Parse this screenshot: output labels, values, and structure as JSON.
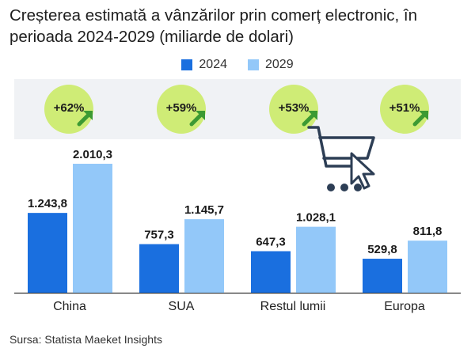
{
  "title": "Creșterea estimată a vânzărilor prin comerț electronic, în perioada 2024-2029 (miliarde de dolari)",
  "legend": [
    {
      "label": "2024",
      "color": "#1a6fdf"
    },
    {
      "label": "2029",
      "color": "#93c8f9"
    }
  ],
  "growth_badges": [
    "+62%",
    "+59%",
    "+53%",
    "+51%"
  ],
  "source": "Sursa: Statista Maeket Insights",
  "colors": {
    "badge": "#cfec76",
    "arrow": "#3c9a33",
    "band": "#f0f2f5",
    "icon": "#2d3e55"
  },
  "icons": [
    "growth-arrow-icon",
    "shopping-cart-icon",
    "mouse-pointer-icon"
  ],
  "chart_data": {
    "type": "bar",
    "categories": [
      "China",
      "SUA",
      "Restul lumii",
      "Europa"
    ],
    "series": [
      {
        "name": "2024",
        "values": [
          1243.8,
          757.3,
          647.3,
          529.8
        ],
        "labels": [
          "1.243,8",
          "757,3",
          "647,3",
          "529,8"
        ]
      },
      {
        "name": "2029",
        "values": [
          2010.3,
          1145.7,
          1028.1,
          811.8
        ],
        "labels": [
          "2.010,3",
          "1.145,7",
          "1.028,1",
          "811,8"
        ]
      }
    ],
    "ylim": [
      0,
      2010.3
    ],
    "grid": false,
    "legend_position": "top-center"
  }
}
